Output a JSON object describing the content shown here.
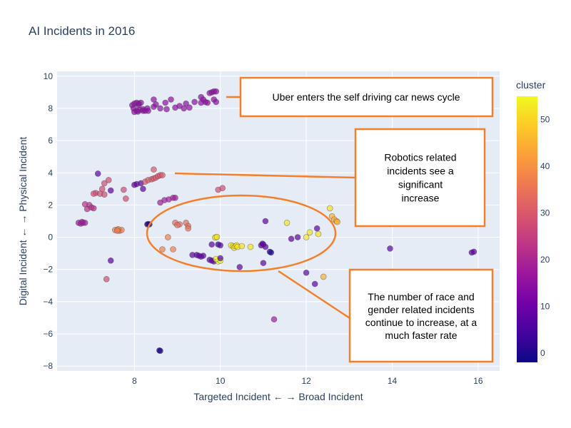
{
  "chart_data": {
    "type": "scatter",
    "title": "AI Incidents in 2016",
    "xlabel": "Targeted Incident ← → Broad Incident",
    "ylabel": "Digital Incident ← → Physical Incident",
    "xlim": [
      6.2,
      16.5
    ],
    "ylim": [
      -8.3,
      10.3
    ],
    "xticks": [
      8,
      10,
      12,
      14,
      16
    ],
    "yticks": [
      10,
      8,
      6,
      4,
      2,
      0,
      -2,
      -4,
      -6,
      -8
    ],
    "grid": true,
    "colorbar": {
      "title": "cluster",
      "range": [
        -2,
        55
      ],
      "ticks": [
        0,
        10,
        20,
        30,
        40,
        50
      ],
      "colors": [
        "#0d0887",
        "#46039f",
        "#7201a8",
        "#9c179e",
        "#bd3786",
        "#d8576b",
        "#ed7953",
        "#fb9f3a",
        "#fdca26",
        "#f0f921"
      ]
    },
    "points": [
      [
        7.95,
        8.2,
        15
      ],
      [
        8.0,
        8.3,
        15
      ],
      [
        8.05,
        8.35,
        15
      ],
      [
        8.1,
        8.3,
        15
      ],
      [
        8.15,
        8.35,
        15
      ],
      [
        8.1,
        8.2,
        15
      ],
      [
        7.98,
        8.0,
        15
      ],
      [
        8.05,
        7.85,
        15
      ],
      [
        8.12,
        7.9,
        15
      ],
      [
        8.2,
        7.95,
        15
      ],
      [
        8.25,
        7.85,
        15
      ],
      [
        8.0,
        7.78,
        15
      ],
      [
        8.08,
        7.8,
        15
      ],
      [
        8.2,
        7.85,
        15
      ],
      [
        8.3,
        8.0,
        15
      ],
      [
        8.32,
        7.85,
        15
      ],
      [
        8.45,
        8.1,
        15
      ],
      [
        8.45,
        8.55,
        15
      ],
      [
        8.5,
        8.25,
        15
      ],
      [
        8.6,
        8.0,
        15
      ],
      [
        8.72,
        8.35,
        15
      ],
      [
        8.75,
        7.95,
        15
      ],
      [
        8.85,
        8.55,
        15
      ],
      [
        8.95,
        8.05,
        15
      ],
      [
        9.05,
        8.15,
        15
      ],
      [
        9.15,
        8.0,
        15
      ],
      [
        9.2,
        8.3,
        15
      ],
      [
        9.28,
        8.05,
        15
      ],
      [
        9.4,
        8.4,
        15
      ],
      [
        9.55,
        8.7,
        15
      ],
      [
        9.6,
        8.55,
        15
      ],
      [
        9.7,
        8.35,
        15
      ],
      [
        9.75,
        8.95,
        15
      ],
      [
        9.8,
        9.0,
        15
      ],
      [
        9.85,
        9.05,
        15
      ],
      [
        9.9,
        9.05,
        15
      ],
      [
        9.85,
        8.55,
        15
      ],
      [
        9.9,
        8.4,
        15
      ],
      [
        9.65,
        8.4,
        15
      ],
      [
        9.55,
        8.35,
        15
      ],
      [
        7.15,
        3.95,
        8
      ],
      [
        7.4,
        3.55,
        28
      ],
      [
        7.3,
        3.35,
        28
      ],
      [
        7.25,
        3.0,
        28
      ],
      [
        7.1,
        2.75,
        28
      ],
      [
        7.05,
        2.7,
        28
      ],
      [
        6.95,
        2.0,
        22
      ],
      [
        6.9,
        1.75,
        22
      ],
      [
        7.0,
        1.85,
        22
      ],
      [
        7.05,
        1.8,
        22
      ],
      [
        6.85,
        2.05,
        22
      ],
      [
        7.2,
        2.7,
        28
      ],
      [
        7.75,
        2.95,
        28
      ],
      [
        7.8,
        2.4,
        28
      ],
      [
        7.3,
        2.65,
        28
      ],
      [
        6.7,
        0.9,
        18
      ],
      [
        6.75,
        0.85,
        18
      ],
      [
        6.8,
        0.9,
        18
      ],
      [
        6.78,
        0.95,
        18
      ],
      [
        6.85,
        0.9,
        18
      ],
      [
        7.6,
        0.45,
        37
      ],
      [
        7.65,
        0.4,
        37
      ],
      [
        7.7,
        0.45,
        37
      ],
      [
        7.55,
        0.45,
        37
      ],
      [
        7.62,
        0.5,
        37
      ],
      [
        7.45,
        2.9,
        8
      ],
      [
        7.45,
        -1.45,
        8
      ],
      [
        7.35,
        -2.6,
        28
      ],
      [
        7.6,
        0.4,
        37
      ],
      [
        8.0,
        3.25,
        8
      ],
      [
        8.05,
        3.3,
        8
      ],
      [
        8.15,
        3.35,
        8
      ],
      [
        8.25,
        3.45,
        30
      ],
      [
        8.32,
        3.55,
        30
      ],
      [
        8.4,
        3.6,
        30
      ],
      [
        8.45,
        3.65,
        30
      ],
      [
        8.5,
        3.7,
        30
      ],
      [
        8.55,
        3.8,
        30
      ],
      [
        8.6,
        3.85,
        30
      ],
      [
        8.65,
        3.85,
        30
      ],
      [
        8.45,
        4.2,
        30
      ],
      [
        8.2,
        3.0,
        8
      ],
      [
        8.6,
        2.15,
        18
      ],
      [
        8.7,
        2.3,
        18
      ],
      [
        8.8,
        2.35,
        18
      ],
      [
        8.9,
        2.45,
        18
      ],
      [
        8.95,
        2.45,
        18
      ],
      [
        8.3,
        0.8,
        0
      ],
      [
        8.32,
        0.82,
        0
      ],
      [
        8.35,
        0.8,
        0
      ],
      [
        8.95,
        0.9,
        34
      ],
      [
        9.05,
        0.8,
        34
      ],
      [
        9.0,
        0.75,
        34
      ],
      [
        9.2,
        0.9,
        34
      ],
      [
        9.25,
        0.7,
        34
      ],
      [
        9.25,
        0.55,
        34
      ],
      [
        8.78,
        0.0,
        37
      ],
      [
        8.65,
        -0.75,
        37
      ],
      [
        8.9,
        -0.75,
        37
      ],
      [
        9.35,
        -1.1,
        8
      ],
      [
        9.45,
        -1.1,
        8
      ],
      [
        9.5,
        -1.15,
        8
      ],
      [
        9.55,
        -1.2,
        8
      ],
      [
        9.6,
        -1.15,
        8
      ],
      [
        9.75,
        -1.4,
        8
      ],
      [
        9.8,
        -1.45,
        8
      ],
      [
        9.85,
        -1.5,
        8
      ],
      [
        9.95,
        -1.5,
        55
      ],
      [
        10.0,
        -1.45,
        55
      ],
      [
        9.9,
        -1.35,
        55
      ],
      [
        10.0,
        -1.3,
        8
      ],
      [
        9.8,
        -0.45,
        8
      ],
      [
        9.95,
        -0.45,
        0
      ],
      [
        10.0,
        -0.5,
        8
      ],
      [
        9.9,
        0.0,
        52
      ],
      [
        9.88,
        -0.02,
        52
      ],
      [
        9.92,
        0.02,
        52
      ],
      [
        9.95,
        2.95,
        28
      ],
      [
        10.05,
        3.05,
        28
      ],
      [
        10.25,
        -0.5,
        52
      ],
      [
        10.3,
        -0.55,
        52
      ],
      [
        10.32,
        -0.65,
        52
      ],
      [
        10.35,
        -0.55,
        52
      ],
      [
        10.38,
        -0.5,
        52
      ],
      [
        10.4,
        -0.6,
        52
      ],
      [
        10.5,
        -0.55,
        52
      ],
      [
        10.7,
        -0.6,
        52
      ],
      [
        10.45,
        -1.85,
        8
      ],
      [
        10.95,
        -0.5,
        8
      ],
      [
        11.0,
        -0.45,
        8
      ],
      [
        10.98,
        -0.4,
        8
      ],
      [
        11.05,
        -0.6,
        8
      ],
      [
        11.15,
        -0.9,
        0
      ],
      [
        11.18,
        -0.95,
        0
      ],
      [
        11.0,
        -1.6,
        8
      ],
      [
        11.05,
        1.0,
        8
      ],
      [
        11.25,
        -5.1,
        18
      ],
      [
        11.55,
        0.9,
        52
      ],
      [
        11.65,
        -0.1,
        8
      ],
      [
        11.8,
        0.0,
        8
      ],
      [
        12.0,
        0.0,
        52
      ],
      [
        12.08,
        0.3,
        52
      ],
      [
        12.0,
        -2.2,
        8
      ],
      [
        12.2,
        -2.9,
        8
      ],
      [
        12.25,
        0.55,
        8
      ],
      [
        12.28,
        0.2,
        52
      ],
      [
        12.4,
        -2.45,
        45
      ],
      [
        12.55,
        1.8,
        52
      ],
      [
        12.6,
        1.3,
        45
      ],
      [
        12.65,
        1.1,
        45
      ],
      [
        12.7,
        1.0,
        45
      ],
      [
        12.72,
        0.95,
        45
      ],
      [
        13.95,
        -0.7,
        8
      ],
      [
        15.85,
        -0.95,
        8
      ],
      [
        15.9,
        -0.9,
        8
      ],
      [
        8.6,
        -7.05,
        0
      ],
      [
        8.58,
        -7.03,
        0
      ]
    ],
    "annotations": [
      {
        "text": "Uber enters the self driving car news cycle"
      },
      {
        "text": "Robotics related incidents see a significant increase"
      },
      {
        "text": "The number of race and gender related incidents continue to increase, at a much faster rate"
      }
    ]
  }
}
